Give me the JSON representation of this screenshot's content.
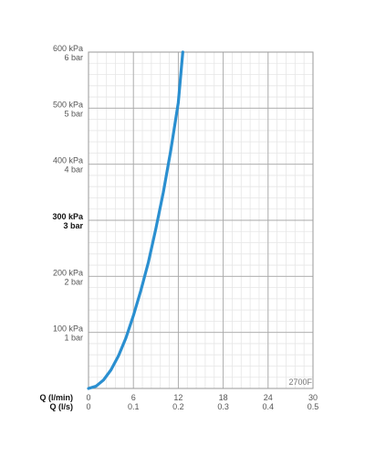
{
  "chart_data": {
    "type": "line",
    "code_label": "2700F",
    "x_axis": {
      "label_primary": "Q (l/min)",
      "label_secondary": "Q (l/s)",
      "range": [
        0,
        30
      ],
      "ticks": [
        0,
        6,
        12,
        18,
        24,
        30
      ],
      "tick_labels_primary": [
        "0",
        "6",
        "12",
        "18",
        "24",
        "30"
      ],
      "tick_labels_secondary": [
        "0",
        "0.1",
        "0.2",
        "0.3",
        "0.4",
        "0.5"
      ],
      "minor_divisions_per_major": 5
    },
    "y_axis": {
      "range": [
        0,
        600
      ],
      "unit": "kPa",
      "ticks": [
        100,
        200,
        300,
        400,
        500,
        600
      ],
      "tick_labels_primary": [
        "100 kPa",
        "200 kPa",
        "300 kPa",
        "400 kPa",
        "500 kPa",
        "600 kPa"
      ],
      "tick_labels_secondary": [
        "1 bar",
        "2 bar",
        "3 bar",
        "4 bar",
        "5 bar",
        "6 bar"
      ],
      "highlighted_tick": 300,
      "minor_divisions_per_major": 5
    },
    "grid": true,
    "series": [
      {
        "color": "#2a8fd0",
        "x": [
          0,
          1,
          2,
          3,
          4,
          5,
          6,
          7,
          8,
          9,
          10,
          11,
          12,
          12.6
        ],
        "y": [
          0,
          4,
          15,
          33,
          58,
          90,
          130,
          175,
          225,
          285,
          350,
          425,
          510,
          600
        ]
      }
    ]
  }
}
